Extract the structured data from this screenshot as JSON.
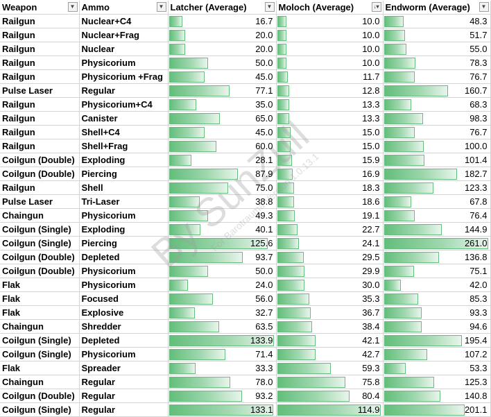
{
  "columns": [
    {
      "label": "Weapon",
      "filter": "filter-dropdown"
    },
    {
      "label": "Ammo",
      "filter": "filter-dropdown"
    },
    {
      "label": "Latcher (Average)",
      "filter": "filter-dropdown"
    },
    {
      "label": "Moloch (Average)",
      "filter": "sort-ascending-filter"
    },
    {
      "label": "Endworm (Average)",
      "filter": "filter-dropdown"
    }
  ],
  "bar_max": {
    "latcher": 133.9,
    "moloch": 114.9,
    "endworm": 261.0
  },
  "bar_color": "#63be7b",
  "rows": [
    {
      "weapon": "Railgun",
      "ammo": "Nuclear+C4",
      "latcher": 16.7,
      "moloch": 10.0,
      "endworm": 48.3
    },
    {
      "weapon": "Railgun",
      "ammo": "Nuclear+Frag",
      "latcher": 20.0,
      "moloch": 10.0,
      "endworm": 51.7
    },
    {
      "weapon": "Railgun",
      "ammo": "Nuclear",
      "latcher": 20.0,
      "moloch": 10.0,
      "endworm": 55.0
    },
    {
      "weapon": "Railgun",
      "ammo": "Physicorium",
      "latcher": 50.0,
      "moloch": 10.0,
      "endworm": 78.3
    },
    {
      "weapon": "Railgun",
      "ammo": "Physicorium +Frag",
      "latcher": 45.0,
      "moloch": 11.7,
      "endworm": 76.7
    },
    {
      "weapon": "Pulse Laser",
      "ammo": "Regular",
      "latcher": 77.1,
      "moloch": 12.8,
      "endworm": 160.7
    },
    {
      "weapon": "Railgun",
      "ammo": "Physicorium+C4",
      "latcher": 35.0,
      "moloch": 13.3,
      "endworm": 68.3
    },
    {
      "weapon": "Railgun",
      "ammo": "Canister",
      "latcher": 65.0,
      "moloch": 13.3,
      "endworm": 98.3
    },
    {
      "weapon": "Railgun",
      "ammo": "Shell+C4",
      "latcher": 45.0,
      "moloch": 15.0,
      "endworm": 76.7
    },
    {
      "weapon": "Railgun",
      "ammo": "Shell+Frag",
      "latcher": 60.0,
      "moloch": 15.0,
      "endworm": 100.0
    },
    {
      "weapon": "Coilgun (Double)",
      "ammo": "Exploding",
      "latcher": 28.1,
      "moloch": 15.9,
      "endworm": 101.4
    },
    {
      "weapon": "Coilgun (Double)",
      "ammo": "Piercing",
      "latcher": 87.9,
      "moloch": 16.9,
      "endworm": 182.7
    },
    {
      "weapon": "Railgun",
      "ammo": "Shell",
      "latcher": 75.0,
      "moloch": 18.3,
      "endworm": 123.3
    },
    {
      "weapon": "Pulse Laser",
      "ammo": "Tri-Laser",
      "latcher": 38.8,
      "moloch": 18.6,
      "endworm": 67.8
    },
    {
      "weapon": "Chaingun",
      "ammo": "Physicorium",
      "latcher": 49.3,
      "moloch": 19.1,
      "endworm": 76.4
    },
    {
      "weapon": "Coilgun (Single)",
      "ammo": "Exploding",
      "latcher": 40.1,
      "moloch": 22.7,
      "endworm": 144.9
    },
    {
      "weapon": "Coilgun (Single)",
      "ammo": "Piercing",
      "latcher": 125.6,
      "moloch": 24.1,
      "endworm": 261.0
    },
    {
      "weapon": "Coilgun (Double)",
      "ammo": "Depleted",
      "latcher": 93.7,
      "moloch": 29.5,
      "endworm": 136.8
    },
    {
      "weapon": "Coilgun (Double)",
      "ammo": "Physicorium",
      "latcher": 50.0,
      "moloch": 29.9,
      "endworm": 75.1
    },
    {
      "weapon": "Flak",
      "ammo": "Physicorium",
      "latcher": 24.0,
      "moloch": 30.0,
      "endworm": 42.0
    },
    {
      "weapon": "Flak",
      "ammo": "Focused",
      "latcher": 56.0,
      "moloch": 35.3,
      "endworm": 85.3
    },
    {
      "weapon": "Flak",
      "ammo": "Explosive",
      "latcher": 32.7,
      "moloch": 36.7,
      "endworm": 93.3
    },
    {
      "weapon": "Chaingun",
      "ammo": "Shredder",
      "latcher": 63.5,
      "moloch": 38.4,
      "endworm": 94.6
    },
    {
      "weapon": "Coilgun (Single)",
      "ammo": "Depleted",
      "latcher": 133.9,
      "moloch": 42.1,
      "endworm": 195.4
    },
    {
      "weapon": "Coilgun (Single)",
      "ammo": "Physicorium",
      "latcher": 71.4,
      "moloch": 42.7,
      "endworm": 107.2
    },
    {
      "weapon": "Flak",
      "ammo": "Spreader",
      "latcher": 33.3,
      "moloch": 59.3,
      "endworm": 53.3
    },
    {
      "weapon": "Chaingun",
      "ammo": "Regular",
      "latcher": 78.0,
      "moloch": 75.8,
      "endworm": 125.3
    },
    {
      "weapon": "Coilgun (Double)",
      "ammo": "Regular",
      "latcher": 93.2,
      "moloch": 80.4,
      "endworm": 140.8
    },
    {
      "weapon": "Coilgun (Single)",
      "ammo": "Regular",
      "latcher": 133.1,
      "moloch": 114.9,
      "endworm": 201.1
    }
  ],
  "watermark": {
    "main": "By SunZull",
    "sub": "For Barotrauma Version 1.0.13.1"
  }
}
